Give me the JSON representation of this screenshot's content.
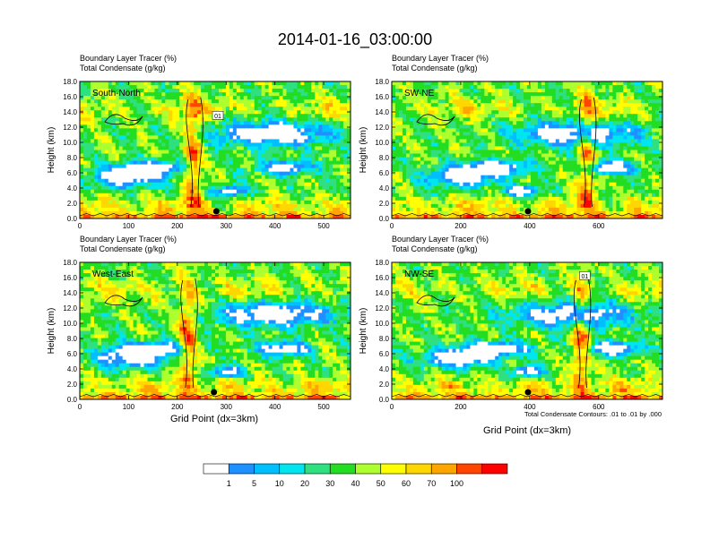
{
  "page_title": "2014-01-16_03:00:00",
  "panel_header": {
    "line1": "Boundary Layer Tracer   (%)",
    "line2": "Total Condensate   (g/kg)"
  },
  "y_axis_label": "Height (km)",
  "x_axis_label": "Grid Point (dx=3km)",
  "contour_note": "Total Condensate Contours: .01 to .01 by .000",
  "chart_data": [
    {
      "type": "heatmap",
      "name": "South-North",
      "xlim": [
        0,
        555
      ],
      "xticks": [
        "0",
        "100",
        "200",
        "300",
        "400",
        "500"
      ],
      "xtick_values": [
        0,
        100,
        200,
        300,
        400,
        500
      ],
      "ylim": [
        0,
        18
      ],
      "yticks": [
        "0.0",
        "2.0",
        "4.0",
        "6.0",
        "8.0",
        "10.0",
        "12.0",
        "14.0",
        "16.0",
        "18.0"
      ],
      "marker_x": 280,
      "contour_label": "01",
      "contour_label_pos": [
        283,
        13.5
      ]
    },
    {
      "type": "heatmap",
      "name": "SW-NE",
      "xlim": [
        0,
        785
      ],
      "xticks": [
        "0",
        "200",
        "400",
        "600"
      ],
      "xtick_values": [
        0,
        200,
        400,
        600
      ],
      "ylim": [
        0,
        18
      ],
      "yticks": [
        "0.0",
        "2.0",
        "4.0",
        "6.0",
        "8.0",
        "10.0",
        "12.0",
        "14.0",
        "16.0",
        "18.0"
      ],
      "marker_x": 395,
      "contour_label": "",
      "contour_label_pos": null
    },
    {
      "type": "heatmap",
      "name": "West-East",
      "xlim": [
        0,
        555
      ],
      "xticks": [
        "0",
        "100",
        "200",
        "300",
        "400",
        "500"
      ],
      "xtick_values": [
        0,
        100,
        200,
        300,
        400,
        500
      ],
      "ylim": [
        0,
        18
      ],
      "yticks": [
        "0.0",
        "2.0",
        "4.0",
        "6.0",
        "8.0",
        "10.0",
        "12.0",
        "14.0",
        "16.0",
        "18.0"
      ],
      "marker_x": 275,
      "contour_label": "",
      "contour_label_pos": null
    },
    {
      "type": "heatmap",
      "name": "NW-SE",
      "xlim": [
        0,
        785
      ],
      "xticks": [
        "0",
        "200",
        "400",
        "600"
      ],
      "xtick_values": [
        0,
        200,
        400,
        600
      ],
      "ylim": [
        0,
        18
      ],
      "yticks": [
        "0.0",
        "2.0",
        "4.0",
        "6.0",
        "8.0",
        "10.0",
        "12.0",
        "14.0",
        "16.0",
        "18.0"
      ],
      "marker_x": 395,
      "contour_label": "01",
      "contour_label_pos": [
        560,
        16.2
      ]
    }
  ],
  "colorbar": {
    "labels": [
      "1",
      "5",
      "10",
      "20",
      "30",
      "40",
      "50",
      "60",
      "70",
      "100"
    ],
    "colors": [
      "#ffffff",
      "#1e90ff",
      "#00bfff",
      "#00e5ee",
      "#2ee07f",
      "#22dd22",
      "#adff2f",
      "#ffff00",
      "#ffd700",
      "#ffa500",
      "#ff4500",
      "#ff0000"
    ]
  }
}
